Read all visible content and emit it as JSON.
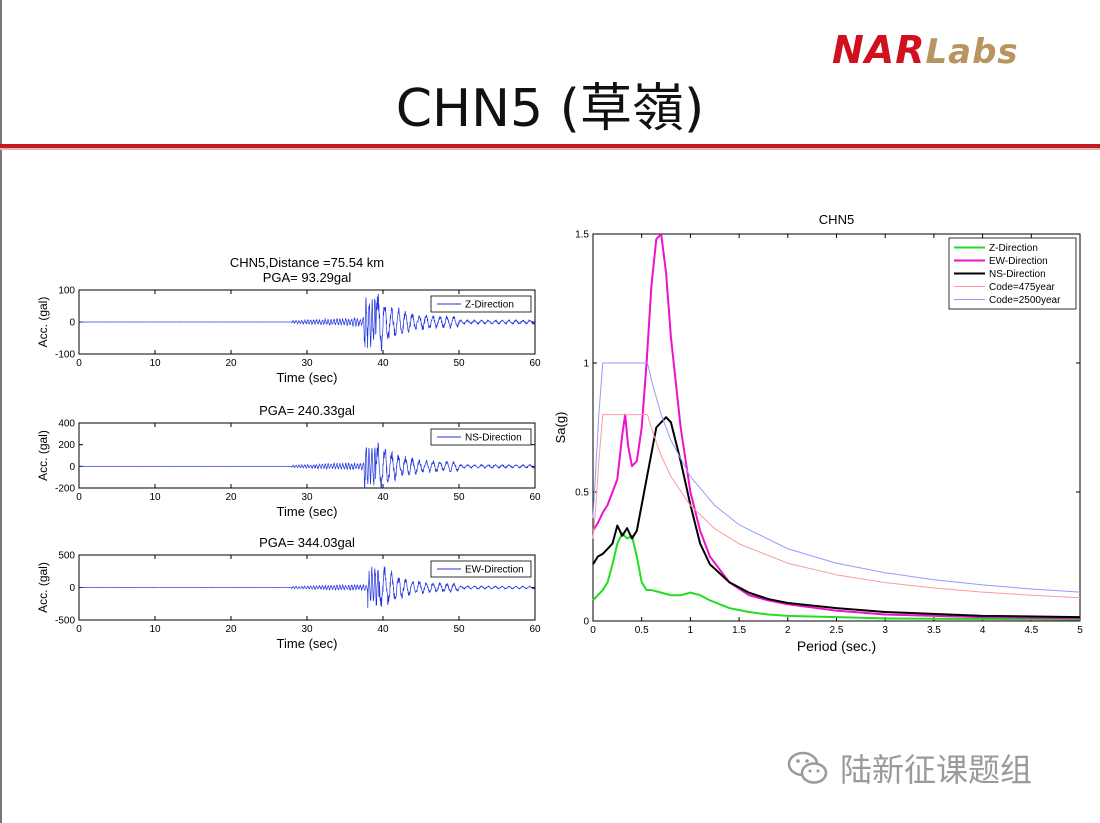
{
  "slide": {
    "title": "CHN5 (草嶺)",
    "logo_nar": "NAR",
    "logo_labs": "Labs",
    "watermark": "陆新征课题组"
  },
  "colors": {
    "title_rule": "#c21a22",
    "ts_line": "#2233dd",
    "z": "#22dd22",
    "ew": "#ee11cc",
    "ns": "#000000",
    "code475": "#ff9999",
    "code2500": "#9999ff"
  },
  "chart_data": [
    {
      "type": "line",
      "title": "CHN5,Distance =75.54 km",
      "subtitle": "PGA= 93.29gal",
      "xlabel": "Time (sec)",
      "ylabel": "Acc. (gal)",
      "xlim": [
        0,
        60
      ],
      "ylim": [
        -100,
        100
      ],
      "xticks": [
        0,
        10,
        20,
        30,
        40,
        50,
        60
      ],
      "yticks": [
        -100,
        0,
        100
      ],
      "legend": [
        "Z-Direction"
      ],
      "legend_position": "top-right",
      "pga": 93.29,
      "record": {
        "onset": 28,
        "peak_time": 39,
        "peak": 93.29
      }
    },
    {
      "type": "line",
      "title": "PGA= 240.33gal",
      "xlabel": "Time (sec)",
      "ylabel": "Acc. (gal)",
      "xlim": [
        0,
        60
      ],
      "ylim": [
        -200,
        400
      ],
      "xticks": [
        0,
        10,
        20,
        30,
        40,
        50,
        60
      ],
      "yticks": [
        -200,
        0,
        200,
        400
      ],
      "legend": [
        "NS-Direction"
      ],
      "legend_position": "top-right",
      "pga": 240.33,
      "record": {
        "onset": 28,
        "peak_time": 39,
        "peak": 240.33
      }
    },
    {
      "type": "line",
      "title": "PGA= 344.03gal",
      "xlabel": "Time (sec)",
      "ylabel": "Acc. (gal)",
      "xlim": [
        0,
        60
      ],
      "ylim": [
        -500,
        500
      ],
      "xticks": [
        0,
        10,
        20,
        30,
        40,
        50,
        60
      ],
      "yticks": [
        -500,
        0,
        500
      ],
      "legend": [
        "EW-Direction"
      ],
      "legend_position": "top-right",
      "pga": 344.03,
      "record": {
        "onset": 28,
        "peak_time": 39.5,
        "peak": 344.03
      }
    },
    {
      "type": "line",
      "title": "CHN5",
      "xlabel": "Period (sec.)",
      "ylabel": "Sa(g)",
      "xlim": [
        0,
        5
      ],
      "ylim": [
        0,
        1.5
      ],
      "xticks": [
        0,
        0.5,
        1,
        1.5,
        2,
        2.5,
        3,
        3.5,
        4,
        4.5,
        5
      ],
      "yticks": [
        0,
        0.5,
        1,
        1.5
      ],
      "legend_position": "top-right",
      "series": [
        {
          "name": "Z-Direction",
          "color_key": "z",
          "width": 2,
          "x": [
            0,
            0.05,
            0.1,
            0.15,
            0.2,
            0.25,
            0.3,
            0.35,
            0.4,
            0.45,
            0.5,
            0.55,
            0.6,
            0.7,
            0.8,
            0.9,
            1.0,
            1.1,
            1.2,
            1.4,
            1.6,
            1.8,
            2.0,
            2.5,
            3.0,
            4.0,
            5.0
          ],
          "y": [
            0.08,
            0.1,
            0.12,
            0.15,
            0.22,
            0.3,
            0.34,
            0.32,
            0.33,
            0.25,
            0.15,
            0.12,
            0.12,
            0.11,
            0.1,
            0.1,
            0.11,
            0.1,
            0.08,
            0.05,
            0.035,
            0.025,
            0.02,
            0.015,
            0.01,
            0.008,
            0.006
          ]
        },
        {
          "name": "EW-Direction",
          "color_key": "ew",
          "width": 2,
          "x": [
            0,
            0.05,
            0.1,
            0.15,
            0.2,
            0.25,
            0.3,
            0.33,
            0.36,
            0.4,
            0.45,
            0.5,
            0.55,
            0.6,
            0.65,
            0.7,
            0.75,
            0.8,
            0.9,
            1.0,
            1.1,
            1.2,
            1.4,
            1.6,
            1.8,
            2.0,
            2.5,
            3.0,
            4.0,
            5.0
          ],
          "y": [
            0.35,
            0.38,
            0.42,
            0.45,
            0.5,
            0.55,
            0.72,
            0.8,
            0.68,
            0.6,
            0.62,
            0.75,
            1.0,
            1.3,
            1.48,
            1.5,
            1.35,
            1.1,
            0.75,
            0.5,
            0.35,
            0.25,
            0.15,
            0.1,
            0.08,
            0.065,
            0.04,
            0.025,
            0.015,
            0.01
          ]
        },
        {
          "name": "NS-Direction",
          "color_key": "ns",
          "width": 2,
          "x": [
            0,
            0.05,
            0.1,
            0.15,
            0.2,
            0.25,
            0.3,
            0.35,
            0.4,
            0.45,
            0.5,
            0.55,
            0.6,
            0.65,
            0.7,
            0.75,
            0.8,
            0.9,
            1.0,
            1.1,
            1.2,
            1.4,
            1.6,
            1.8,
            2.0,
            2.5,
            3.0,
            4.0,
            5.0
          ],
          "y": [
            0.22,
            0.25,
            0.26,
            0.28,
            0.3,
            0.37,
            0.33,
            0.36,
            0.32,
            0.35,
            0.45,
            0.55,
            0.65,
            0.75,
            0.77,
            0.79,
            0.77,
            0.62,
            0.45,
            0.3,
            0.22,
            0.15,
            0.11,
            0.085,
            0.07,
            0.05,
            0.035,
            0.02,
            0.015
          ]
        },
        {
          "name": "Code=475year",
          "color_key": "code475",
          "width": 1,
          "x": [
            0,
            0.03,
            0.06,
            0.1,
            0.2,
            0.3,
            0.4,
            0.5,
            0.56,
            0.6,
            0.7,
            0.8,
            1.0,
            1.25,
            1.5,
            2.0,
            2.5,
            3.0,
            3.5,
            4.0,
            4.5,
            5.0
          ],
          "y": [
            0.32,
            0.45,
            0.62,
            0.8,
            0.8,
            0.8,
            0.8,
            0.8,
            0.8,
            0.747,
            0.64,
            0.56,
            0.448,
            0.358,
            0.299,
            0.224,
            0.179,
            0.149,
            0.128,
            0.112,
            0.1,
            0.09
          ]
        },
        {
          "name": "Code=2500year",
          "color_key": "code2500",
          "width": 1,
          "x": [
            0,
            0.03,
            0.06,
            0.1,
            0.2,
            0.3,
            0.4,
            0.5,
            0.56,
            0.6,
            0.7,
            0.8,
            1.0,
            1.25,
            1.5,
            2.0,
            2.5,
            3.0,
            3.5,
            4.0,
            4.5,
            5.0
          ],
          "y": [
            0.4,
            0.6,
            0.8,
            1.0,
            1.0,
            1.0,
            1.0,
            1.0,
            1.0,
            0.933,
            0.8,
            0.7,
            0.56,
            0.448,
            0.373,
            0.28,
            0.224,
            0.187,
            0.16,
            0.14,
            0.124,
            0.112
          ]
        }
      ]
    }
  ]
}
